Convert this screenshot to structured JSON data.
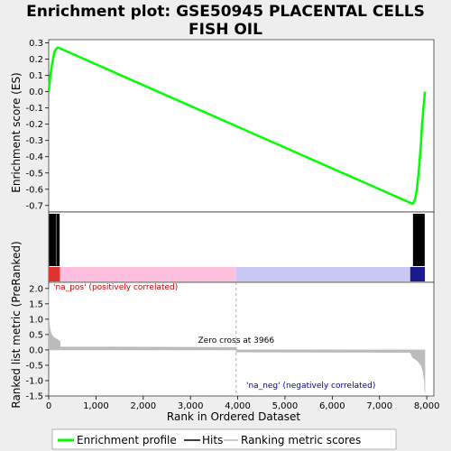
{
  "chart_data": {
    "type": "line",
    "title_line1": "Enrichment plot: GSE50945 PLACENTAL CELLS",
    "title_line2": "FISH OIL",
    "xlabel": "Rank in Ordered Dataset",
    "es_ylabel": "Enrichment score (ES)",
    "metric_ylabel": "Ranked list metric (PreRanked)",
    "xlim": [
      0,
      8150
    ],
    "x_ticks": [
      "0",
      "1,000",
      "2,000",
      "3,000",
      "4,000",
      "5,000",
      "6,000",
      "7,000",
      "8,000"
    ],
    "x_tick_values": [
      0,
      1000,
      2000,
      3000,
      4000,
      5000,
      6000,
      7000,
      8000
    ],
    "es_ylim": [
      -0.74,
      0.32
    ],
    "es_ticks": [
      "0.3",
      "0.2",
      "0.1",
      "0.0",
      "-0.1",
      "-0.2",
      "-0.3",
      "-0.4",
      "-0.5",
      "-0.6",
      "-0.7"
    ],
    "es_tick_values": [
      0.3,
      0.2,
      0.1,
      0.0,
      -0.1,
      -0.2,
      -0.3,
      -0.4,
      -0.5,
      -0.6,
      -0.7
    ],
    "metric_ylim": [
      -1.5,
      2.2
    ],
    "metric_ticks": [
      "2.0",
      "1.5",
      "1.0",
      "0.5",
      "0.0",
      "-0.5",
      "-1.0",
      "-1.5"
    ],
    "metric_tick_values": [
      2.0,
      1.5,
      1.0,
      0.5,
      0.0,
      -0.5,
      -1.0,
      -1.5
    ],
    "es_series": {
      "name": "Enrichment profile",
      "x": [
        0,
        30,
        60,
        90,
        120,
        150,
        180,
        210,
        7700,
        7730,
        7760,
        7790,
        7820,
        7850,
        7880,
        7900,
        7930,
        7960
      ],
      "y": [
        0.0,
        0.09,
        0.15,
        0.2,
        0.245,
        0.26,
        0.27,
        0.27,
        -0.69,
        -0.68,
        -0.65,
        -0.6,
        -0.52,
        -0.42,
        -0.3,
        -0.2,
        -0.1,
        0.0
      ]
    },
    "hits": [
      20,
      40,
      55,
      70,
      85,
      100,
      115,
      130,
      150,
      180,
      195,
      210,
      220,
      7720,
      7735,
      7750,
      7765,
      7780,
      7795,
      7810,
      7825,
      7840,
      7855,
      7870,
      7885,
      7900,
      7915,
      7930,
      7945
    ],
    "metric_series": {
      "x": [
        0,
        10,
        30,
        60,
        100,
        150,
        200,
        240,
        241,
        3966,
        3967,
        7650,
        7700,
        7800,
        7880,
        7920,
        7950,
        7960
      ],
      "y": [
        2.0,
        0.9,
        0.65,
        0.5,
        0.42,
        0.37,
        0.32,
        0.28,
        0.1,
        0.08,
        -0.07,
        -0.08,
        -0.25,
        -0.35,
        -0.5,
        -0.7,
        -1.0,
        -1.4
      ]
    },
    "zero_cross": 3966,
    "zero_cross_label": "Zero cross at 3966",
    "pos_label": "'na_pos' (positively correlated)",
    "neg_label": "'na_neg' (negatively correlated)",
    "legend": [
      "Enrichment profile",
      "Hits",
      "Ranking metric scores"
    ],
    "colors": {
      "es_line": "#00ff00",
      "hits": "#000000",
      "metric": "#bbbbbb",
      "pos_band": "#ffc0e0",
      "neg_band": "#c8c8f4",
      "pos_text": "#cc0000",
      "neg_text": "#0000aa",
      "background": "#eeeeee",
      "plot_bg": "#ffffff"
    }
  }
}
